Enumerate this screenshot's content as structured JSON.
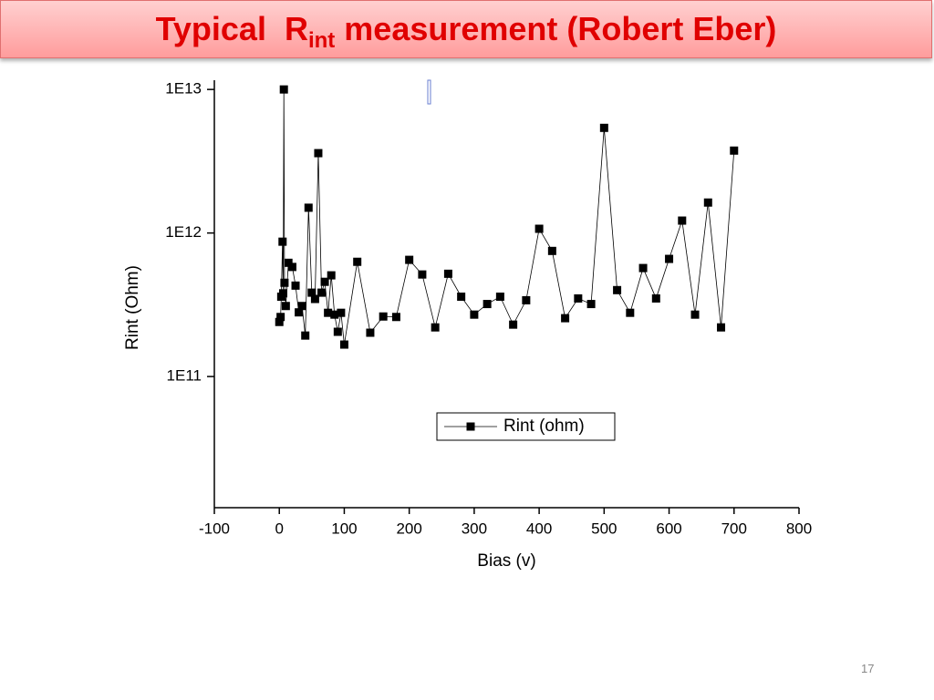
{
  "slide": {
    "title": {
      "main": "Typical  R",
      "subscript": "int",
      "rest": " measurement (Robert Eber)"
    },
    "page_number": "17"
  },
  "chart_data": {
    "type": "line",
    "x_label": "Bias (v)",
    "y_label": "Rint (Ohm)",
    "x": [
      0,
      2,
      3,
      5,
      6,
      7,
      8,
      10,
      14,
      20,
      25,
      30,
      35,
      40,
      45,
      50,
      55,
      60,
      65,
      70,
      75,
      80,
      85,
      90,
      95,
      100,
      120,
      140,
      160,
      180,
      200,
      220,
      240,
      260,
      280,
      300,
      320,
      340,
      360,
      380,
      400,
      420,
      440,
      460,
      480,
      500,
      520,
      540,
      560,
      580,
      600,
      620,
      640,
      660,
      680,
      700
    ],
    "series": [
      {
        "name": "Rint (ohm)",
        "color": "#000000",
        "values": [
          240000000000.0,
          260000000000.0,
          360000000000.0,
          870000000000.0,
          380000000000.0,
          10000000000000.0,
          450000000000.0,
          310000000000.0,
          620000000000.0,
          580000000000.0,
          430000000000.0,
          280000000000.0,
          310000000000.0,
          193000000000.0,
          1500000000000.0,
          384000000000.0,
          347000000000.0,
          3600000000000.0,
          384000000000.0,
          457000000000.0,
          278000000000.0,
          507000000000.0,
          270000000000.0,
          205000000000.0,
          278000000000.0,
          167000000000.0,
          630000000000.0,
          202000000000.0,
          262000000000.0,
          260000000000.0,
          650000000000.0,
          514000000000.0,
          220000000000.0,
          520000000000.0,
          360000000000.0,
          270000000000.0,
          320000000000.0,
          360000000000.0,
          230000000000.0,
          340000000000.0,
          1070000000000.0,
          750000000000.0,
          255000000000.0,
          350000000000.0,
          320000000000.0,
          5400000000000.0,
          400000000000.0,
          278000000000.0,
          570000000000.0,
          350000000000.0,
          660000000000.0,
          1220000000000.0,
          270000000000.0,
          1630000000000.0,
          220000000000.0,
          3750000000000.0
        ]
      }
    ],
    "xlim": [
      -100,
      800
    ],
    "xticks": [
      -100,
      0,
      100,
      200,
      300,
      400,
      500,
      600,
      700,
      800
    ],
    "ylim": [
      12200000000.0,
      11600000000000.0
    ],
    "log_y": true,
    "yticks": [
      {
        "value": 100000000000.0,
        "label": "1E11"
      },
      {
        "value": 1000000000000.0,
        "label": "1E12"
      },
      {
        "value": 10000000000000.0,
        "label": "1E13"
      }
    ],
    "legend": "bottom-center"
  }
}
